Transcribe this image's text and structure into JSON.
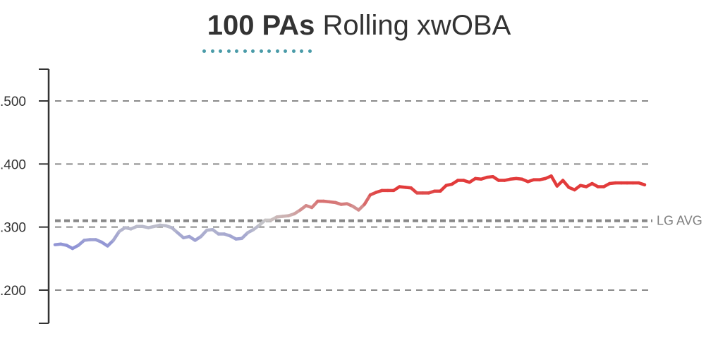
{
  "title": {
    "bold": "100 PAs",
    "rest": "Rolling xwOBA"
  },
  "accent_color": "#4a9ba8",
  "chart_data": {
    "type": "line",
    "title": "100 PAs Rolling xwOBA",
    "xlabel": "",
    "ylabel": "",
    "ylim": [
      0.15,
      0.55
    ],
    "yticks": [
      0.2,
      0.3,
      0.4,
      0.5
    ],
    "ytick_labels": [
      ".200",
      ".300",
      ".400",
      ".500"
    ],
    "grid": true,
    "reference_line": {
      "label": "LG AVG",
      "value": 0.31,
      "color": "#888888"
    },
    "colors": {
      "low": "#8f93d6",
      "mid": "#c8c8c8",
      "high": "#e23b3b"
    },
    "series": [
      {
        "values": [
          0.272,
          0.273,
          0.271,
          0.266,
          0.271,
          0.279,
          0.28,
          0.28,
          0.276,
          0.27,
          0.279,
          0.293,
          0.299,
          0.297,
          0.301,
          0.301,
          0.299,
          0.301,
          0.303,
          0.302,
          0.299,
          0.291,
          0.283,
          0.285,
          0.279,
          0.285,
          0.295,
          0.296,
          0.289,
          0.289,
          0.286,
          0.281,
          0.282,
          0.291,
          0.296,
          0.303,
          0.311,
          0.311,
          0.316,
          0.317,
          0.318,
          0.321,
          0.327,
          0.334,
          0.331,
          0.341,
          0.341,
          0.34,
          0.339,
          0.336,
          0.337,
          0.333,
          0.327,
          0.336,
          0.351,
          0.355,
          0.358,
          0.358,
          0.358,
          0.364,
          0.363,
          0.362,
          0.354,
          0.354,
          0.354,
          0.357,
          0.357,
          0.366,
          0.368,
          0.374,
          0.374,
          0.371,
          0.377,
          0.376,
          0.379,
          0.38,
          0.374,
          0.374,
          0.376,
          0.377,
          0.376,
          0.372,
          0.375,
          0.375,
          0.377,
          0.381,
          0.365,
          0.374,
          0.363,
          0.359,
          0.366,
          0.364,
          0.369,
          0.364,
          0.364,
          0.369,
          0.37,
          0.37,
          0.37,
          0.37,
          0.37,
          0.367
        ]
      }
    ]
  }
}
